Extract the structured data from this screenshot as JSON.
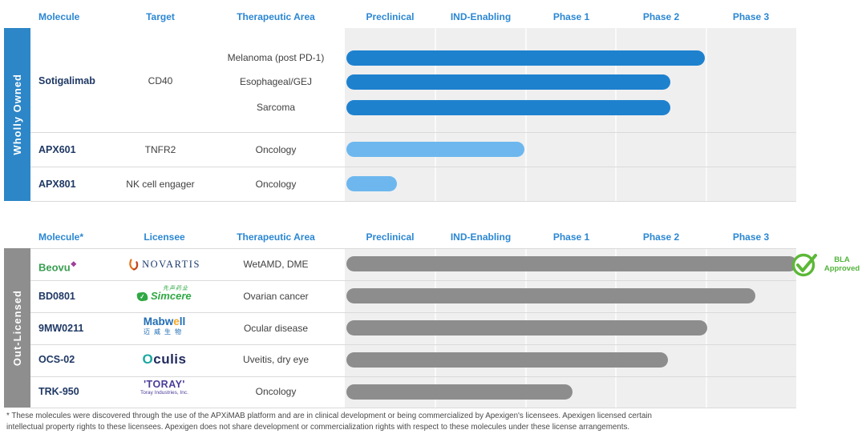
{
  "colors": {
    "header_text": "#2b87d3",
    "wholly_owned_sidebar": "#2d86c7",
    "out_licensed_sidebar": "#8e8e8e",
    "bar_dark_blue": "#1e81ce",
    "bar_light_blue": "#6db7ee",
    "bar_gray": "#8d8d8d",
    "molecule_text": "#1f3864",
    "bla_green": "#52b43c",
    "chart_bg": "#efeff0"
  },
  "top": {
    "sidebar": "Wholly Owned",
    "col_molecule": "Molecule",
    "col_target": "Target",
    "col_area": "Therapeutic Area",
    "phases": [
      "Preclinical",
      "IND-Enabling",
      "Phase 1",
      "Phase 2",
      "Phase 3"
    ],
    "rows": {
      "sotigalimab": {
        "molecule": "Sotigalimab",
        "target": "CD40",
        "indications": [
          {
            "area": "Melanoma (post PD-1)",
            "phase_end": 3.97,
            "color": "#1e81ce"
          },
          {
            "area": "Esophageal/GEJ",
            "phase_end": 3.59,
            "color": "#1e81ce"
          },
          {
            "area": "Sarcoma",
            "phase_end": 3.59,
            "color": "#1e81ce"
          }
        ]
      },
      "apx601": {
        "molecule": "APX601",
        "target": "TNFR2",
        "area": "Oncology",
        "bar": {
          "phase_end": 1.97,
          "color": "#6db7ee"
        }
      },
      "apx801": {
        "molecule": "APX801",
        "target": "NK cell engager",
        "area": "Oncology",
        "bar": {
          "phase_end": 0.56,
          "color": "#6db7ee"
        }
      }
    }
  },
  "bottom": {
    "sidebar": "Out-Licensed",
    "col_molecule": "Molecule*",
    "col_licensee": "Licensee",
    "col_area": "Therapeutic Area",
    "phases": [
      "Preclinical",
      "IND-Enabling",
      "Phase 1",
      "Phase 2",
      "Phase 3"
    ],
    "rows": [
      {
        "molecule": "Beovu",
        "molecule_mark": "❖",
        "licensee": "NOVARTIS",
        "area": "WetAMD, DME",
        "bar": {
          "phase_end": 4.99,
          "color": "#8d8d8d"
        },
        "badge": {
          "line1": "BLA",
          "line2": "Approved",
          "color": "#52b43c"
        }
      },
      {
        "molecule": "BD0801",
        "licensee": "Simcere",
        "licensee_cn": "先声药业",
        "area": "Ovarian cancer",
        "bar": {
          "phase_end": 4.53,
          "color": "#8d8d8d"
        }
      },
      {
        "molecule": "9MW0211",
        "licensee_a": "Mabw",
        "licensee_e": "e",
        "licensee_b": "ll",
        "licensee_cn": "迈威生物",
        "area": "Ocular disease",
        "bar": {
          "phase_end": 4.0,
          "color": "#8d8d8d"
        }
      },
      {
        "molecule": "OCS-02",
        "licensee_o": "O",
        "licensee_rest": "culis",
        "area": "Uveitis, dry eye",
        "bar": {
          "phase_end": 3.56,
          "color": "#8d8d8d"
        }
      },
      {
        "molecule": "TRK-950",
        "licensee": "'TORAY'",
        "licensee_sub": "Toray Industries, Inc.",
        "area": "Oncology",
        "bar": {
          "phase_end": 2.5,
          "color": "#8d8d8d"
        }
      }
    ]
  },
  "footnote": {
    "line1": "* These molecules were discovered through the use of the APXiMAB platform and are in clinical development or being commercialized by Apexigen's licensees.  Apexigen licensed certain",
    "line2": "intellectual property rights to these licensees.  Apexigen does not share development or commercialization rights with respect to these molecules under these license arrangements."
  },
  "chart_data": {
    "type": "bar",
    "orientation": "horizontal",
    "x_axis_phases": [
      "Preclinical",
      "IND-Enabling",
      "Phase 1",
      "Phase 2",
      "Phase 3"
    ],
    "value_scale": "development phases completed (0 = start of Preclinical, 5 = end of Phase 3)",
    "grid": true,
    "series": [
      {
        "group": "Wholly Owned",
        "molecule": "Sotigalimab",
        "target": "CD40",
        "indication": "Melanoma (post PD-1)",
        "value": 3.97
      },
      {
        "group": "Wholly Owned",
        "molecule": "Sotigalimab",
        "target": "CD40",
        "indication": "Esophageal/GEJ",
        "value": 3.59
      },
      {
        "group": "Wholly Owned",
        "molecule": "Sotigalimab",
        "target": "CD40",
        "indication": "Sarcoma",
        "value": 3.59
      },
      {
        "group": "Wholly Owned",
        "molecule": "APX601",
        "target": "TNFR2",
        "indication": "Oncology",
        "value": 1.97
      },
      {
        "group": "Wholly Owned",
        "molecule": "APX801",
        "target": "NK cell engager",
        "indication": "Oncology",
        "value": 0.56
      },
      {
        "group": "Out-Licensed",
        "molecule": "Beovu",
        "licensee": "Novartis",
        "indication": "WetAMD, DME",
        "value": 4.99,
        "status": "BLA Approved"
      },
      {
        "group": "Out-Licensed",
        "molecule": "BD0801",
        "licensee": "Simcere",
        "indication": "Ovarian cancer",
        "value": 4.53
      },
      {
        "group": "Out-Licensed",
        "molecule": "9MW0211",
        "licensee": "Mabwell",
        "indication": "Ocular disease",
        "value": 4.0
      },
      {
        "group": "Out-Licensed",
        "molecule": "OCS-02",
        "licensee": "Oculis",
        "indication": "Uveitis, dry eye",
        "value": 3.56
      },
      {
        "group": "Out-Licensed",
        "molecule": "TRK-950",
        "licensee": "Toray",
        "indication": "Oncology",
        "value": 2.5
      }
    ]
  }
}
